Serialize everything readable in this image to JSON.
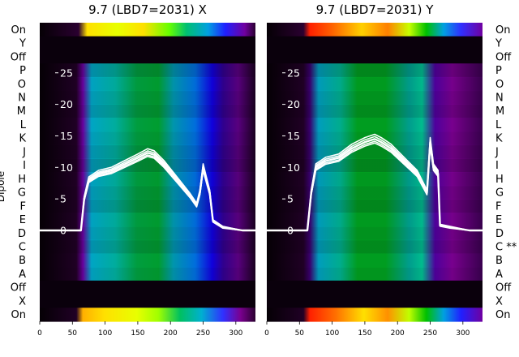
{
  "chart_data": [
    {
      "type": "heatmap",
      "title": "9.7 (LBD7=2031) X",
      "ylabel": "Dipole",
      "x_ticks": [
        0,
        50,
        100,
        150,
        200,
        250,
        300
      ],
      "xlim": [
        0,
        330
      ],
      "trace_ticks": [
        0,
        5,
        10,
        15,
        20,
        25
      ],
      "rows": [
        "On",
        "Y",
        "Off",
        "P",
        "O",
        "N",
        "M",
        "L",
        "K",
        "J",
        "I",
        "H",
        "G",
        "F",
        "E",
        "D",
        "C",
        "B",
        "A",
        "Off",
        "X",
        "On"
      ],
      "trace_series": {
        "x": [
          0,
          50,
          63,
          68,
          75,
          90,
          110,
          130,
          150,
          165,
          175,
          190,
          210,
          230,
          240,
          245,
          250,
          255,
          260,
          265,
          280,
          310,
          330
        ],
        "y": [
          0,
          0,
          0,
          5,
          8,
          9,
          9.5,
          10.5,
          11.5,
          12.3,
          12,
          10.5,
          8,
          5.5,
          4,
          6,
          10,
          8,
          6,
          1.5,
          0.5,
          0,
          0
        ]
      }
    },
    {
      "type": "heatmap",
      "title": "9.7 (LBD7=2031) Y",
      "x_ticks": [
        0,
        50,
        100,
        150,
        200,
        250,
        300
      ],
      "xlim": [
        0,
        330
      ],
      "trace_ticks": [
        0,
        5,
        10,
        15,
        20,
        25
      ],
      "rows": [
        "On",
        "Y",
        "Off",
        "P",
        "O",
        "N",
        "M",
        "L",
        "K",
        "J",
        "I",
        "H",
        "G",
        "F",
        "E",
        "D",
        "C **",
        "B",
        "A",
        "Off",
        "X",
        "On"
      ],
      "trace_series": {
        "x": [
          0,
          50,
          62,
          68,
          75,
          90,
          110,
          130,
          150,
          165,
          175,
          190,
          210,
          230,
          240,
          245,
          250,
          255,
          262,
          265,
          280,
          310,
          330
        ],
        "y": [
          0,
          0,
          0,
          6,
          10,
          11,
          11.5,
          13,
          14,
          14.5,
          14,
          13,
          11,
          9,
          7,
          6,
          14,
          10,
          9,
          0.8,
          0.5,
          0,
          0
        ]
      }
    }
  ]
}
